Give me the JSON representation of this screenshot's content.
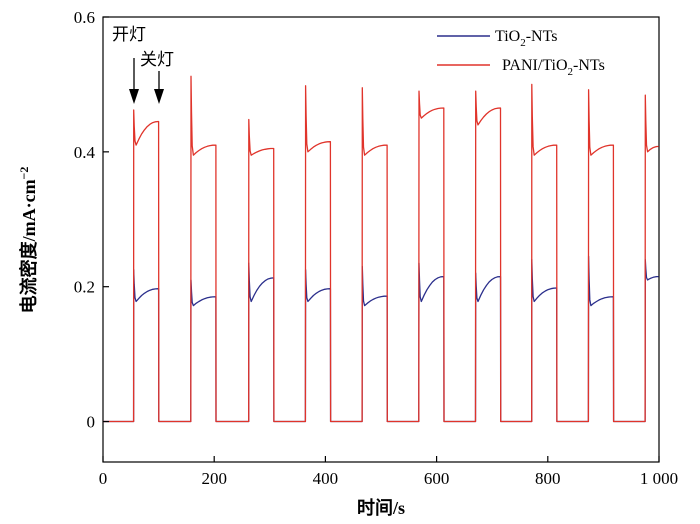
{
  "chart_data": {
    "type": "line",
    "xlabel": "时间/s",
    "ylabel_main": "电流密度/mA·cm",
    "ylabel_sup": "−2",
    "xlim": [
      0,
      1000
    ],
    "ylim": [
      -0.06,
      0.6
    ],
    "x_ticks": [
      0,
      200,
      400,
      600,
      800,
      1000
    ],
    "x_tick_labels": [
      "0",
      "200",
      "400",
      "600",
      "800",
      "1 000"
    ],
    "y_ticks": [
      0,
      0.2,
      0.4,
      0.6
    ],
    "y_tick_labels": [
      "0",
      "0.2",
      "0.4",
      "0.6"
    ],
    "cycles": [
      {
        "on": 55,
        "off": 100
      },
      {
        "on": 158,
        "off": 203
      },
      {
        "on": 262,
        "off": 307
      },
      {
        "on": 364,
        "off": 409
      },
      {
        "on": 466,
        "off": 511
      },
      {
        "on": 568,
        "off": 613
      },
      {
        "on": 670,
        "off": 715
      },
      {
        "on": 771,
        "off": 816
      },
      {
        "on": 873,
        "off": 918
      },
      {
        "on": 975,
        "off": 1000
      }
    ],
    "series": [
      {
        "name_pre": "TiO",
        "name_sub": "2",
        "name_post": "-NTs",
        "color": "#2b2f8c",
        "peaks": [
          0.225,
          0.21,
          0.235,
          0.225,
          0.23,
          0.235,
          0.22,
          0.24,
          0.245,
          0.24
        ],
        "dips": [
          0.178,
          0.172,
          0.178,
          0.178,
          0.172,
          0.178,
          0.178,
          0.178,
          0.172,
          0.21
        ],
        "plateau_end": [
          0.197,
          0.185,
          0.213,
          0.197,
          0.186,
          0.215,
          0.215,
          0.198,
          0.185,
          0.215
        ]
      },
      {
        "name_pre": "PANI/TiO",
        "name_sub": "2",
        "name_post": "-NTs",
        "color": "#e0342b",
        "peaks": [
          0.462,
          0.512,
          0.448,
          0.498,
          0.495,
          0.49,
          0.49,
          0.5,
          0.492,
          0.484
        ],
        "dips": [
          0.41,
          0.395,
          0.395,
          0.4,
          0.395,
          0.45,
          0.44,
          0.395,
          0.395,
          0.4
        ],
        "plateau_end": [
          0.445,
          0.41,
          0.405,
          0.415,
          0.41,
          0.465,
          0.465,
          0.41,
          0.41,
          0.408
        ]
      }
    ],
    "annotations": [
      {
        "text": "开灯",
        "x": 55,
        "target_y": 0.47
      },
      {
        "text": "关灯",
        "x": 100,
        "target_y": 0.47
      }
    ],
    "legend_position": "top-right"
  }
}
